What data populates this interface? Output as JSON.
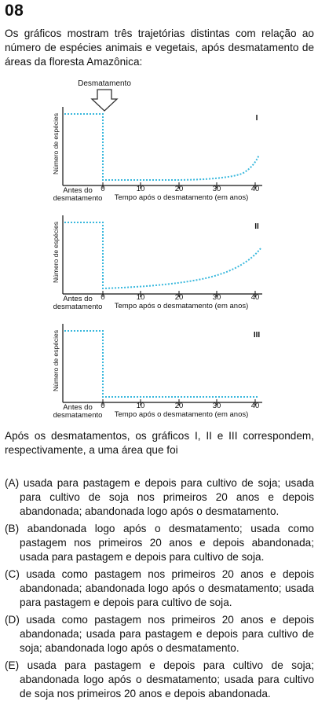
{
  "question_number": "08",
  "intro": "Os gráficos mostram três trajetórias distintas com relação ao número de espécies animais e vegetais, após desmatamento de áreas da floresta Amazônica:",
  "figure": {
    "arrow_label": "Desmatamento",
    "line_color": "#39b8dd",
    "charts": [
      {
        "label": "I",
        "ylabel": "Número de espécies",
        "before_label_1": "Antes do",
        "before_label_2": "desmatamento",
        "xlabel": "Tempo após o desmatamento (em anos)",
        "ticks": [
          "0",
          "10",
          "20",
          "30",
          "40"
        ]
      },
      {
        "label": "II",
        "ylabel": "Número de espécies",
        "before_label_1": "Antes do",
        "before_label_2": "desmatamento",
        "xlabel": "Tempo após o desmatamento (em anos)",
        "ticks": [
          "0",
          "10",
          "20",
          "30",
          "40"
        ]
      },
      {
        "label": "III",
        "ylabel": "Número de espécies",
        "before_label_1": "Antes do",
        "before_label_2": "desmatamento",
        "xlabel": "Tempo após o desmatamento (em anos)",
        "ticks": [
          "0",
          "10",
          "20",
          "30",
          "40"
        ]
      }
    ]
  },
  "question": "Após os desmatamentos, os gráficos I, II e III correspondem, respectivamente, a uma área que foi",
  "options": [
    {
      "letter": "(A)",
      "text": "usada para pastagem e depois para cultivo de soja; usada para cultivo de soja nos primeiros 20 anos e depois abandonada; abandonada logo após o desmatamento."
    },
    {
      "letter": "(B)",
      "text": "abandonada logo após o desmatamento; usada como pastagem nos primeiros 20 anos e depois abandonada; usada para pastagem e depois para cultivo de soja."
    },
    {
      "letter": "(C)",
      "text": "usada como pastagem nos primeiros 20 anos e depois abandonada; abandonada logo após o desmatamento; usada para pastagem e depois para cultivo de soja."
    },
    {
      "letter": "(D)",
      "text": "usada como pastagem nos primeiros 20 anos e depois abandonada; usada para pastagem e depois para cultivo de soja; abandonada logo após o desmatamento."
    },
    {
      "letter": "(E)",
      "text": "usada para pastagem e depois para cultivo de soja; abandonada logo após o desmatamento; usada para cultivo de soja nos primeiros 20 anos e depois abandonada."
    }
  ]
}
